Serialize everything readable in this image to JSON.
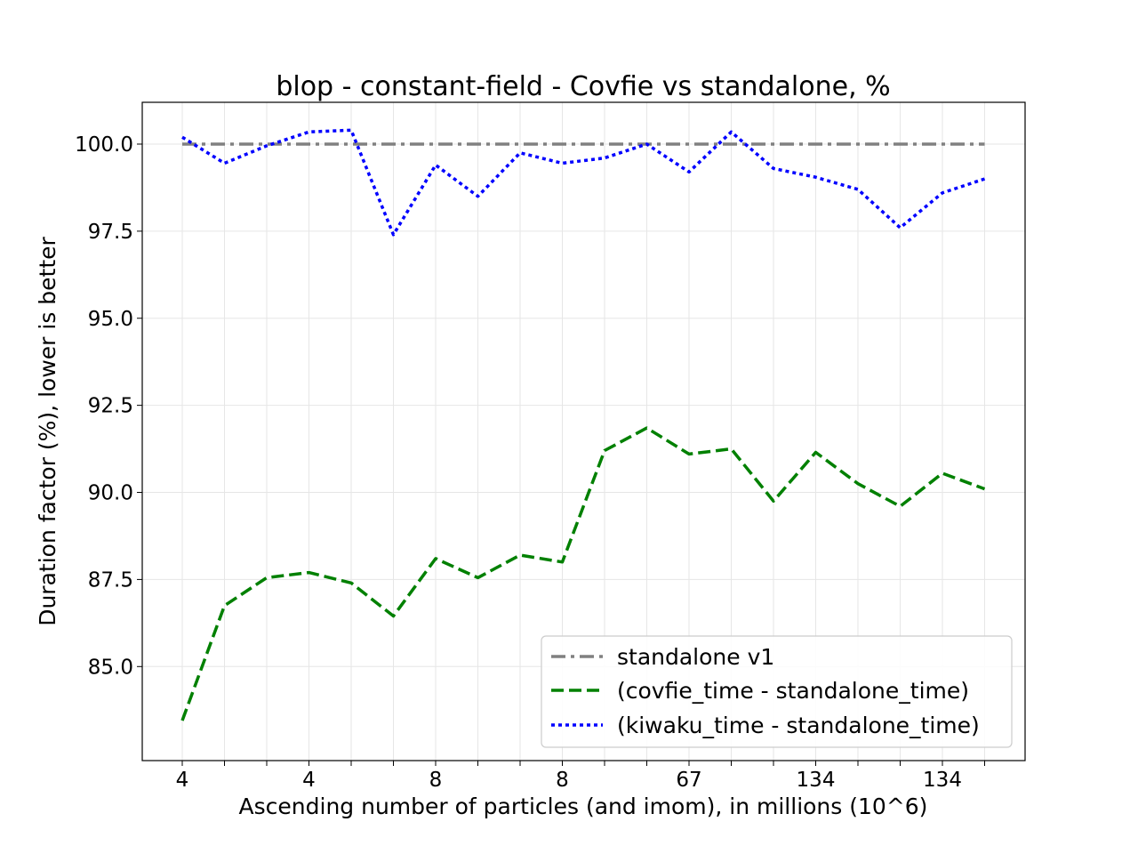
{
  "chart_data": {
    "type": "line",
    "title": "blop - constant-field - Covfie vs standalone, %",
    "xlabel": "Ascending number of particles (and imom), in millions (10^6)",
    "ylabel": "Duration factor (%), lower is better",
    "x_tick_labels": [
      "4",
      "",
      "",
      "4",
      "",
      "",
      "8",
      "",
      "",
      "8",
      "",
      "",
      "67",
      "",
      "",
      "134",
      "",
      "",
      "134",
      ""
    ],
    "y_ticks": [
      "85.0",
      "87.5",
      "90.0",
      "92.5",
      "95.0",
      "97.5",
      "100.0"
    ],
    "ylim": [
      82.3,
      101.2
    ],
    "grid": true,
    "legend_position": "lower-right",
    "series": [
      {
        "name": "standalone v1",
        "color": "#808080",
        "style": "dashdot",
        "values": [
          100,
          100,
          100,
          100,
          100,
          100,
          100,
          100,
          100,
          100,
          100,
          100,
          100,
          100,
          100,
          100,
          100,
          100,
          100,
          100
        ]
      },
      {
        "name": "(covfie_time - standalone_time)",
        "color": "#008000",
        "style": "dashed",
        "values": [
          83.45,
          86.75,
          87.55,
          87.7,
          87.4,
          86.45,
          88.1,
          87.55,
          88.2,
          88.0,
          91.2,
          91.85,
          91.1,
          91.25,
          89.75,
          91.15,
          90.25,
          89.6,
          90.55,
          90.1
        ]
      },
      {
        "name": "(kiwaku_time - standalone_time)",
        "color": "#0000ff",
        "style": "dotted",
        "values": [
          100.2,
          99.45,
          99.95,
          100.35,
          100.4,
          97.4,
          99.4,
          98.5,
          99.75,
          99.45,
          99.6,
          100.0,
          99.2,
          100.35,
          99.3,
          99.05,
          98.7,
          97.6,
          98.6,
          99.0
        ]
      }
    ]
  }
}
